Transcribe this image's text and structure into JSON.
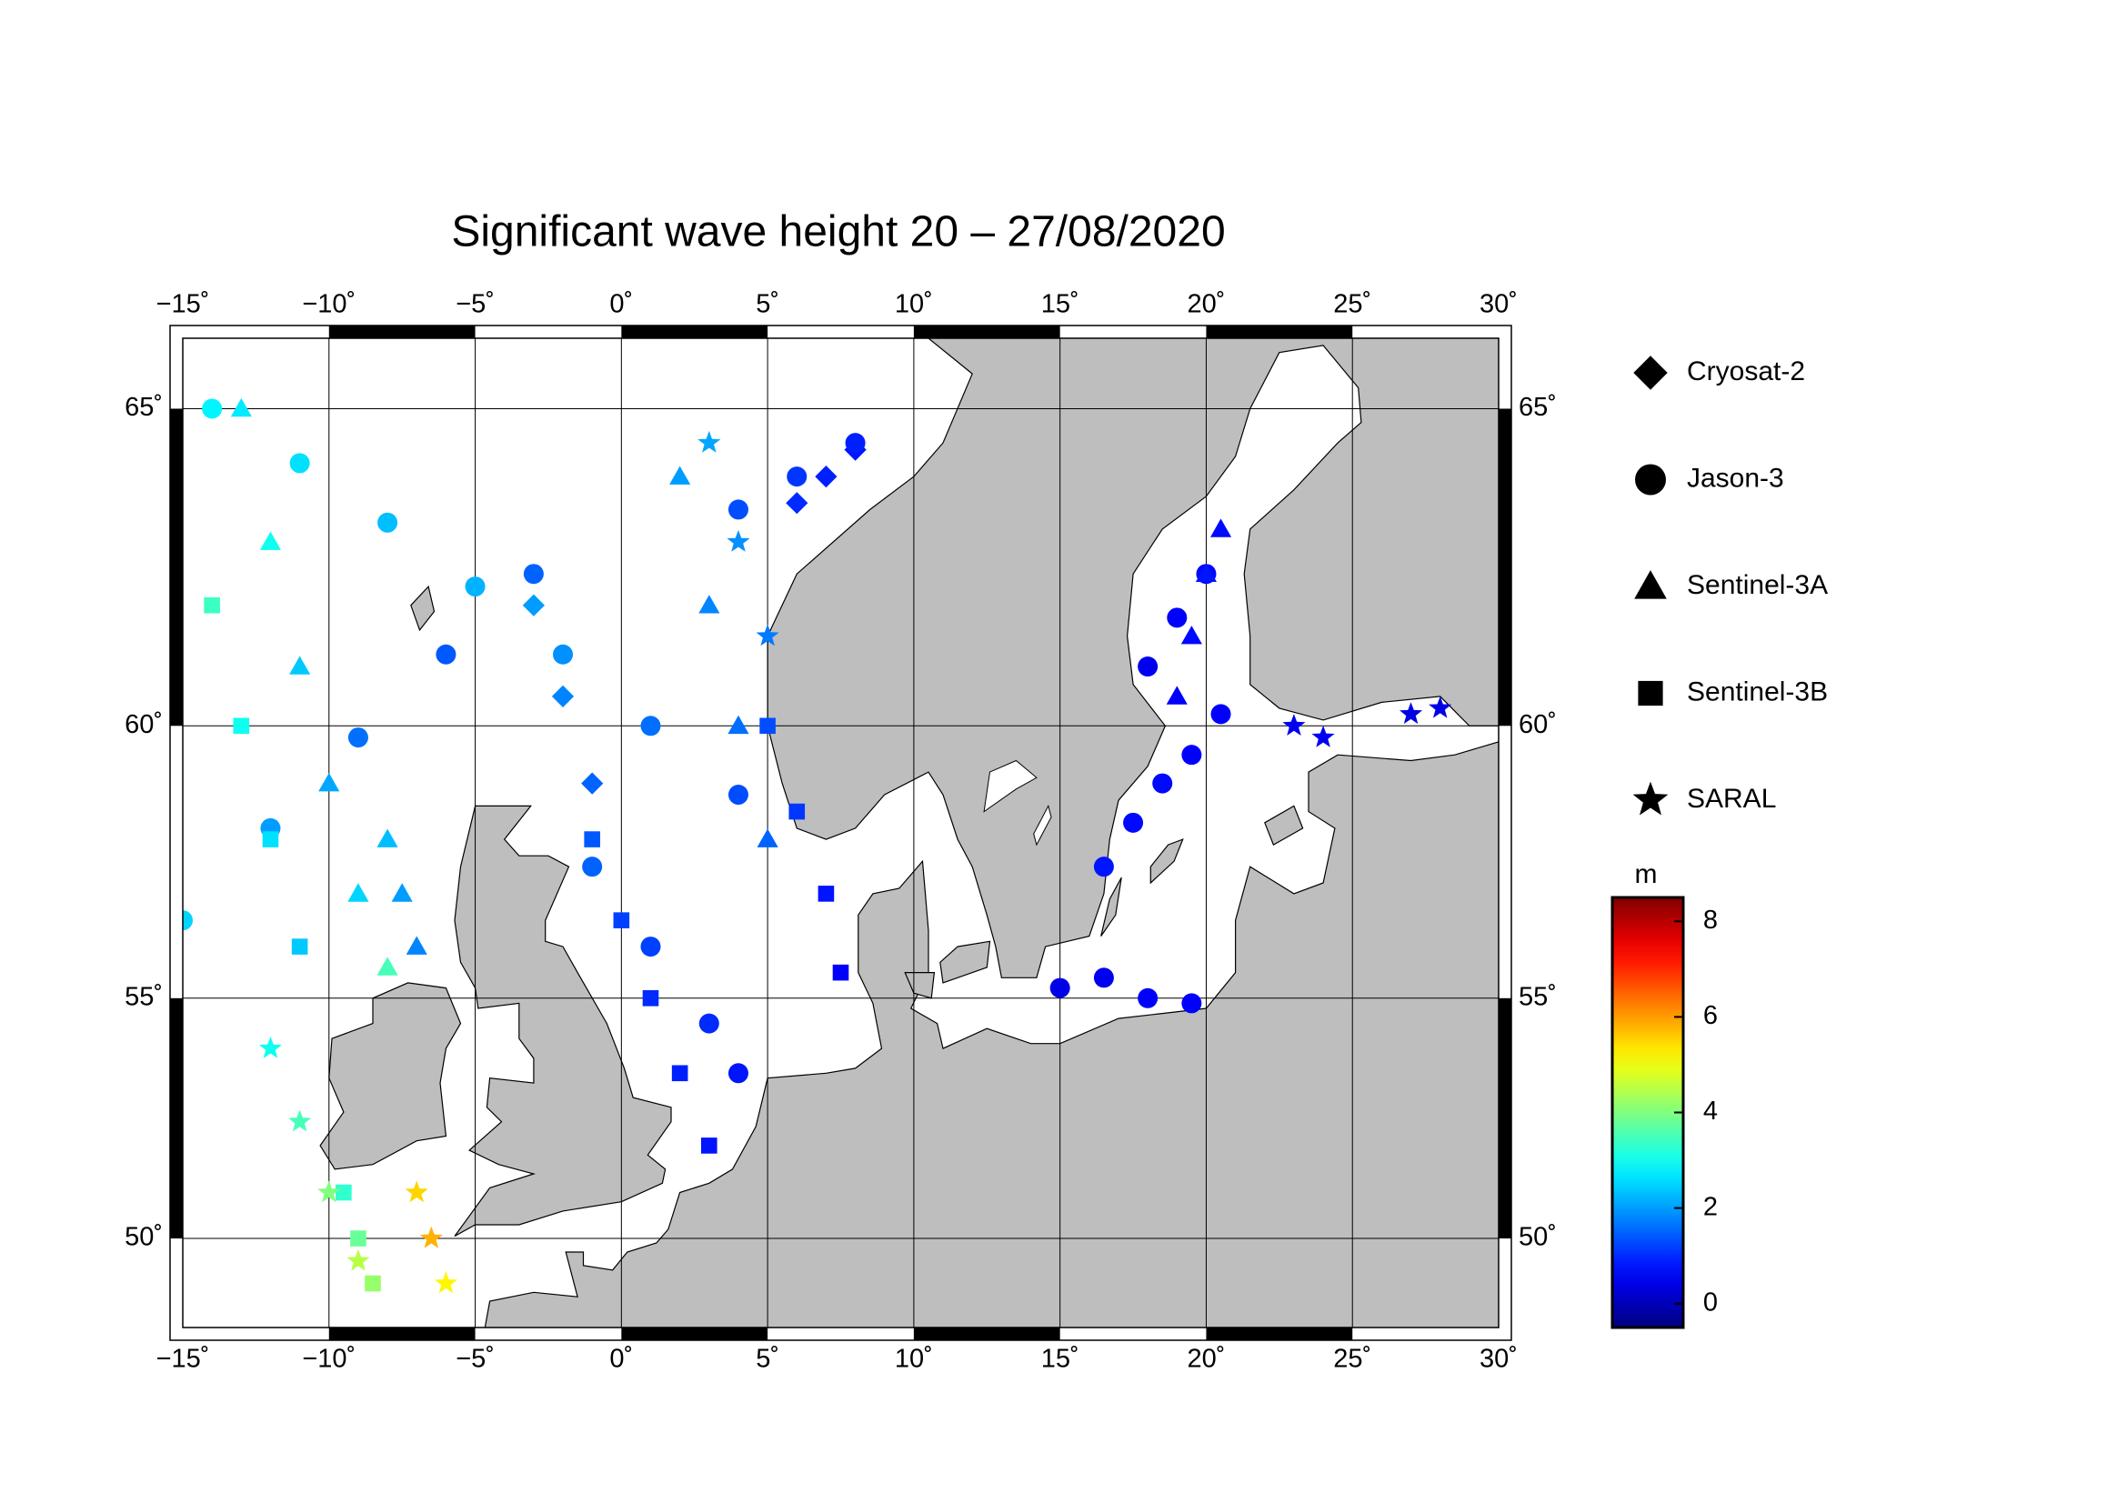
{
  "chart_data": {
    "type": "map",
    "title": "Significant wave height 20 – 27/08/2020",
    "projection": "mercator",
    "xlim": [
      -15,
      30
    ],
    "ylim": [
      48,
      66
    ],
    "xticks": [
      {
        "value": -15,
        "label": "−15˚"
      },
      {
        "value": -10,
        "label": "−10˚"
      },
      {
        "value": -5,
        "label": "−5˚"
      },
      {
        "value": 0,
        "label": "0˚"
      },
      {
        "value": 5,
        "label": "5˚"
      },
      {
        "value": 10,
        "label": "10˚"
      },
      {
        "value": 15,
        "label": "15˚"
      },
      {
        "value": 20,
        "label": "20˚"
      },
      {
        "value": 25,
        "label": "25˚"
      },
      {
        "value": 30,
        "label": "30˚"
      }
    ],
    "yticks": [
      {
        "value": 50,
        "label": "50˚"
      },
      {
        "value": 55,
        "label": "55˚"
      },
      {
        "value": 60,
        "label": "60˚"
      },
      {
        "value": 65,
        "label": "65˚"
      }
    ],
    "grid": true,
    "land_color": "#bebebe",
    "colorbar": {
      "label": "m",
      "colormap": "jet",
      "clim": [
        -0.5,
        8.5
      ],
      "ticks": [
        0,
        2,
        4,
        6,
        8
      ]
    },
    "satellites": [
      {
        "name": "Cryosat-2",
        "marker": "diamond",
        "tracks": [
          {
            "lon": [
              6,
              7,
              8
            ],
            "lat": [
              63.6,
              64.0,
              64.4
            ],
            "swh": [
              1.0,
              0.9,
              0.8
            ]
          },
          {
            "lon": [
              -3,
              -2,
              -1
            ],
            "lat": [
              62,
              60.5,
              59
            ],
            "swh": [
              2.0,
              1.8,
              1.5
            ]
          }
        ]
      },
      {
        "name": "Jason-3",
        "marker": "circle",
        "tracks": [
          {
            "lon": [
              -14,
              -11,
              -8,
              -5,
              -2,
              1,
              4
            ],
            "lat": [
              65,
              64.2,
              63.3,
              62.3,
              61.2,
              60,
              58.8
            ],
            "swh": [
              2.8,
              2.6,
              2.3,
              2.2,
              1.9,
              1.6,
              1.3
            ]
          },
          {
            "lon": [
              -15,
              -12,
              -9,
              -6,
              -3
            ],
            "lat": [
              56.5,
              58.2,
              59.8,
              61.2,
              62.5
            ],
            "swh": [
              2.5,
              2.0,
              1.6,
              1.4,
              1.5
            ]
          },
          {
            "lon": [
              -1,
              1,
              3,
              4
            ],
            "lat": [
              57.5,
              56,
              54.5,
              53.5
            ],
            "swh": [
              1.5,
              1.2,
              1.0,
              0.8
            ]
          },
          {
            "lon": [
              16.5,
              17.5,
              18.5,
              19.5,
              20.5
            ],
            "lat": [
              57.5,
              58.3,
              59,
              59.5,
              60.2
            ],
            "swh": [
              0.8,
              0.7,
              0.7,
              0.6,
              0.6
            ]
          },
          {
            "lon": [
              18,
              19,
              20
            ],
            "lat": [
              61,
              61.8,
              62.5
            ],
            "swh": [
              0.5,
              0.6,
              0.7
            ]
          },
          {
            "lon": [
              4,
              6,
              8
            ],
            "lat": [
              63.5,
              64,
              64.5
            ],
            "swh": [
              1.3,
              1.1,
              0.9
            ]
          },
          {
            "lon": [
              15,
              16.5,
              18,
              19.5
            ],
            "lat": [
              55.2,
              55.4,
              55,
              54.9
            ],
            "swh": [
              0.4,
              0.5,
              0.6,
              0.6
            ]
          }
        ]
      },
      {
        "name": "Sentinel-3A",
        "marker": "triangle",
        "tracks": [
          {
            "lon": [
              -13,
              -12,
              -11,
              -10,
              -9,
              -8
            ],
            "lat": [
              65,
              63,
              61,
              59,
              57,
              55.6
            ],
            "swh": [
              2.7,
              3.0,
              2.4,
              2.1,
              2.5,
              3.5
            ]
          },
          {
            "lon": [
              2,
              3,
              4,
              5
            ],
            "lat": [
              64,
              62,
              60,
              58
            ],
            "swh": [
              2.0,
              1.8,
              1.6,
              1.5
            ]
          },
          {
            "lon": [
              19,
              19.5,
              20,
              20.5
            ],
            "lat": [
              60.5,
              61.5,
              62.5,
              63.2
            ],
            "swh": [
              0.6,
              0.7,
              0.8,
              0.7
            ]
          },
          {
            "lon": [
              -8,
              -7.5,
              -7
            ],
            "lat": [
              58,
              57,
              56
            ],
            "swh": [
              2.3,
              2.0,
              1.8
            ]
          }
        ]
      },
      {
        "name": "Sentinel-3B",
        "marker": "square",
        "tracks": [
          {
            "lon": [
              -1,
              0,
              1,
              2,
              3
            ],
            "lat": [
              58,
              56.5,
              55,
              53.5,
              52
            ],
            "swh": [
              1.4,
              1.2,
              1.0,
              0.9,
              0.8
            ]
          },
          {
            "lon": [
              5,
              6,
              7,
              7.5
            ],
            "lat": [
              60,
              58.5,
              57,
              55.5
            ],
            "swh": [
              1.3,
              1.1,
              0.8,
              0.6
            ]
          },
          {
            "lon": [
              -14,
              -13,
              -12,
              -11
            ],
            "lat": [
              62,
              60,
              58,
              56
            ],
            "swh": [
              3.4,
              3.0,
              2.6,
              2.4
            ]
          },
          {
            "lon": [
              -9.5,
              -9,
              -8.5
            ],
            "lat": [
              51,
              50,
              49
            ],
            "swh": [
              3.3,
              3.8,
              4.2
            ]
          }
        ]
      },
      {
        "name": "SARAL",
        "marker": "star",
        "tracks": [
          {
            "lon": [
              -12,
              -11,
              -10,
              -9
            ],
            "lat": [
              54,
              52.5,
              51,
              49.5
            ],
            "swh": [
              3.0,
              3.5,
              4.0,
              4.5
            ]
          },
          {
            "lon": [
              -7,
              -6.5,
              -6
            ],
            "lat": [
              51,
              50,
              49
            ],
            "swh": [
              5.5,
              5.8,
              5.2
            ]
          },
          {
            "lon": [
              23,
              24,
              27,
              28
            ],
            "lat": [
              60,
              59.8,
              60.2,
              60.3
            ],
            "swh": [
              0.5,
              0.5,
              0.4,
              0.4
            ]
          },
          {
            "lon": [
              3,
              4,
              5
            ],
            "lat": [
              64.5,
              63,
              61.5
            ],
            "swh": [
              2.1,
              1.9,
              1.7
            ]
          }
        ]
      }
    ]
  }
}
